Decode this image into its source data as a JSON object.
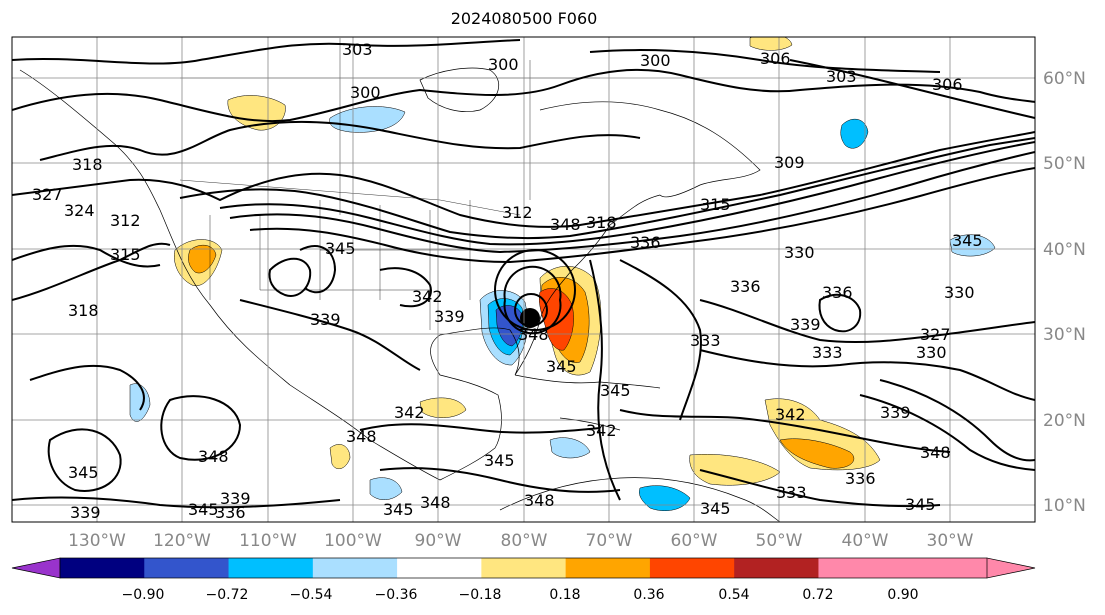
{
  "title": "2024080500 F060",
  "map": {
    "lon_labels": [
      "130°W",
      "120°W",
      "110°W",
      "100°W",
      "90°W",
      "80°W",
      "70°W",
      "60°W",
      "50°W",
      "40°W",
      "30°W"
    ],
    "lat_labels": [
      "60°N",
      "50°N",
      "40°N",
      "30°N",
      "20°N",
      "10°N"
    ],
    "contour_labels": [
      "303",
      "300",
      "300",
      "306",
      "303",
      "306",
      "300",
      "327",
      "324",
      "318",
      "312",
      "315",
      "318",
      "309",
      "315",
      "336",
      "345",
      "342",
      "339",
      "339",
      "348",
      "330",
      "336",
      "330",
      "327",
      "330",
      "336",
      "339",
      "333",
      "333",
      "339",
      "342",
      "348",
      "345",
      "342",
      "345",
      "345",
      "348",
      "348",
      "345",
      "342",
      "348",
      "336",
      "345",
      "339",
      "339",
      "345",
      "336",
      "348",
      "312",
      "348",
      "345",
      "318",
      "345",
      "333",
      "345"
    ]
  },
  "colorbar": {
    "tick_labels": [
      "−0.90",
      "−0.72",
      "−0.54",
      "−0.36",
      "−0.18",
      "0.18",
      "0.36",
      "0.54",
      "0.72",
      "0.90"
    ],
    "colors": [
      "#9933cc",
      "#000080",
      "#3355cc",
      "#00bfff",
      "#aadfff",
      "#ffffff",
      "#ffe680",
      "#ffa500",
      "#ff4500",
      "#b22222",
      "#ff88aa",
      "#ff88aa"
    ],
    "extend_low_color": "#9933cc",
    "extend_high_color": "#ff88aa"
  }
}
